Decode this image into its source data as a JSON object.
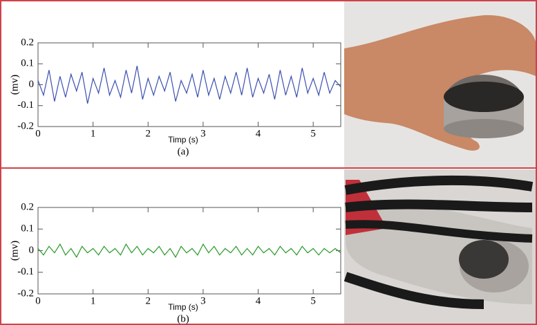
{
  "chart_data": [
    {
      "type": "line",
      "xlabel": "Timp (s)",
      "ylabel": "(mv)",
      "caption": "(a)",
      "x": [
        0,
        0.1,
        0.2,
        0.3,
        0.4,
        0.5,
        0.6,
        0.7,
        0.8,
        0.9,
        1,
        1.1,
        1.2,
        1.3,
        1.4,
        1.5,
        1.6,
        1.7,
        1.8,
        1.9,
        2,
        2.1,
        2.2,
        2.3,
        2.4,
        2.5,
        2.6,
        2.7,
        2.8,
        2.9,
        3,
        3.1,
        3.2,
        3.3,
        3.4,
        3.5,
        3.6,
        3.7,
        3.8,
        3.9,
        4,
        4.1,
        4.2,
        4.3,
        4.4,
        4.5,
        4.6,
        4.7,
        4.8,
        4.9,
        5,
        5.1,
        5.2,
        5.3,
        5.4,
        5.5
      ],
      "values": [
        0.02,
        -0.05,
        0.07,
        -0.08,
        0.04,
        -0.06,
        0.05,
        -0.03,
        0.06,
        -0.09,
        0.03,
        -0.04,
        0.08,
        -0.05,
        0.02,
        -0.06,
        0.07,
        -0.04,
        0.09,
        -0.07,
        0.03,
        -0.05,
        0.04,
        -0.03,
        0.06,
        -0.08,
        0.02,
        -0.04,
        0.05,
        -0.06,
        0.07,
        -0.05,
        0.03,
        -0.07,
        0.04,
        -0.04,
        0.06,
        -0.05,
        0.08,
        -0.06,
        0.03,
        -0.04,
        0.05,
        -0.07,
        0.07,
        -0.05,
        0.04,
        -0.06,
        0.08,
        -0.04,
        0.03,
        -0.05,
        0.06,
        -0.04,
        0.02,
        -0.01
      ],
      "color": "#3a4fb0",
      "xlim": [
        0,
        5.5
      ],
      "ylim": [
        -0.2,
        0.2
      ],
      "xticks": [
        0,
        1,
        2,
        3,
        4,
        5
      ],
      "yticks": [
        0.2,
        0.1,
        0,
        -0.1,
        -0.2
      ]
    },
    {
      "type": "line",
      "xlabel": "Timp (s)",
      "ylabel": "(mv)",
      "caption": "(b)",
      "x": [
        0,
        0.1,
        0.2,
        0.3,
        0.4,
        0.5,
        0.6,
        0.7,
        0.8,
        0.9,
        1,
        1.1,
        1.2,
        1.3,
        1.4,
        1.5,
        1.6,
        1.7,
        1.8,
        1.9,
        2,
        2.1,
        2.2,
        2.3,
        2.4,
        2.5,
        2.6,
        2.7,
        2.8,
        2.9,
        3,
        3.1,
        3.2,
        3.3,
        3.4,
        3.5,
        3.6,
        3.7,
        3.8,
        3.9,
        4,
        4.1,
        4.2,
        4.3,
        4.4,
        4.5,
        4.6,
        4.7,
        4.8,
        4.9,
        5,
        5.1,
        5.2,
        5.3,
        5.4,
        5.5
      ],
      "values": [
        0.01,
        -0.02,
        0.02,
        -0.01,
        0.03,
        -0.02,
        0.01,
        -0.03,
        0.02,
        -0.01,
        0.01,
        -0.02,
        0.02,
        -0.01,
        0.01,
        -0.02,
        0.03,
        -0.01,
        0.02,
        -0.02,
        0.01,
        -0.01,
        0.02,
        -0.02,
        0.01,
        -0.03,
        0.02,
        -0.01,
        0.01,
        -0.02,
        0.03,
        -0.01,
        0.02,
        -0.02,
        0.01,
        -0.01,
        0.02,
        -0.02,
        0.01,
        -0.02,
        0.02,
        -0.01,
        0.01,
        -0.02,
        0.02,
        -0.01,
        0.01,
        -0.02,
        0.02,
        -0.01,
        0.01,
        -0.02,
        0.01,
        -0.01,
        0.01,
        -0.01
      ],
      "color": "#2a9a2a",
      "xlim": [
        0,
        5.5
      ],
      "ylim": [
        -0.2,
        0.2
      ],
      "xticks": [
        0,
        1,
        2,
        3,
        4,
        5
      ],
      "yticks": [
        0.2,
        0.1,
        0,
        -0.1,
        -0.2
      ]
    }
  ]
}
